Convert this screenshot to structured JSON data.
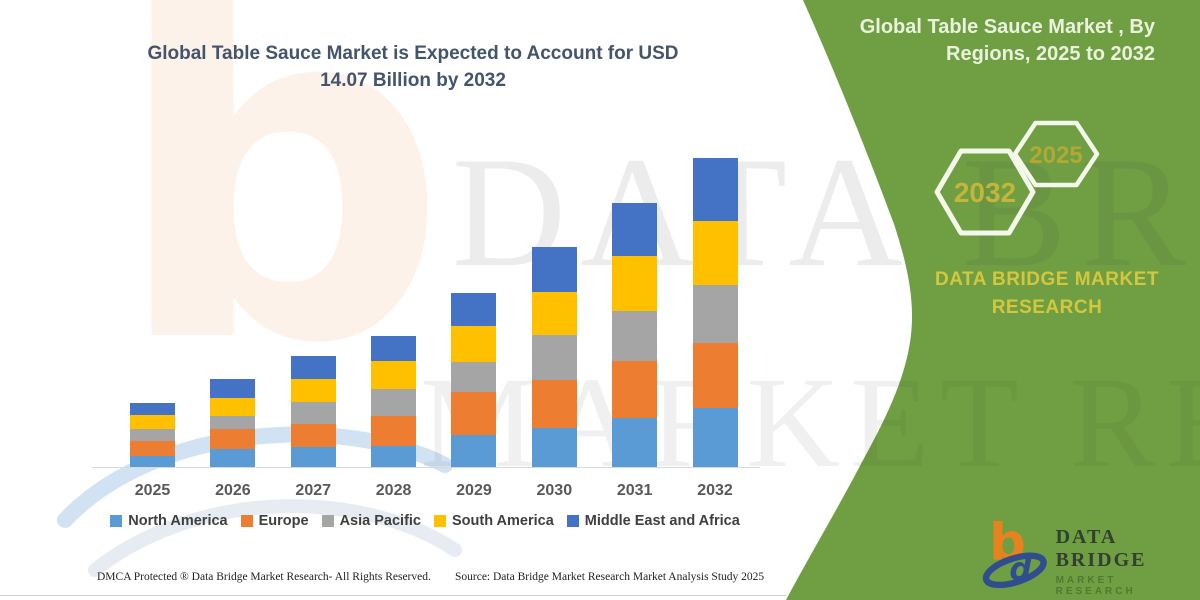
{
  "chart_data": {
    "type": "bar",
    "stacked": true,
    "title": "Global Table Sauce Market is Expected to Account for USD 14.07 Billion by 2032",
    "unit": "USD Billion",
    "categories": [
      "2025",
      "2026",
      "2027",
      "2028",
      "2029",
      "2030",
      "2031",
      "2032"
    ],
    "series": [
      {
        "name": "North America",
        "color": "#5B9BD5",
        "values": [
          0.54,
          0.86,
          0.95,
          1.0,
          1.5,
          1.81,
          2.27,
          2.72
        ]
      },
      {
        "name": "Europe",
        "color": "#ED7D31",
        "values": [
          0.68,
          0.91,
          1.04,
          1.36,
          1.95,
          2.18,
          2.59,
          2.95
        ]
      },
      {
        "name": "Asia Pacific",
        "color": "#A5A5A5",
        "values": [
          0.54,
          0.59,
          1.0,
          1.22,
          1.36,
          2.04,
          2.27,
          2.63
        ]
      },
      {
        "name": "South America",
        "color": "#FFC000",
        "values": [
          0.63,
          0.82,
          1.04,
          1.27,
          1.63,
          1.95,
          2.49,
          2.9
        ]
      },
      {
        "name": "Middle East and Africa",
        "color": "#4472C4",
        "values": [
          0.57,
          0.86,
          1.04,
          1.13,
          1.5,
          2.04,
          2.4,
          2.87
        ]
      }
    ],
    "totals_estimated": [
      2.96,
      4.04,
      5.07,
      5.98,
      7.94,
      10.02,
      12.02,
      14.07
    ],
    "ylim": [
      0,
      14.07
    ],
    "gridlines": false,
    "legend_position": "bottom"
  },
  "panel": {
    "title": "Global Table Sauce Market , By Regions, 2025 to 2032",
    "hexagon_large_year": "2032",
    "hexagon_small_year": "2025",
    "brand": "DATA BRIDGE MARKET RESEARCH",
    "background_color": "#6F9F42",
    "accent_text_color": "#D4C73F"
  },
  "logo": {
    "monogram": "b",
    "name": "DATA BRIDGE",
    "subtitle": "MARKET RESEARCH"
  },
  "footer": {
    "dmca": "DMCA Protected ® Data Bridge Market Research- All Rights Reserved.",
    "source": "Source: Data Bridge Market Research Market Analysis Study 2025"
  },
  "watermark": {
    "line1": "DATA BRIDGE",
    "line2": "MARKET RESEARCH",
    "logo_letter": "b"
  }
}
